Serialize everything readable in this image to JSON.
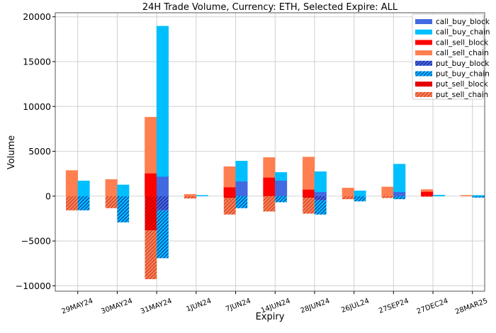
{
  "chart_data": {
    "type": "bar",
    "title": "24H Trade Volume, Currency: ETH, Selected Expire: ALL",
    "xlabel": "Expiry",
    "ylabel": "Volume",
    "ylim": [
      -10600,
      20450
    ],
    "yticks": [
      -10000,
      -5000,
      0,
      5000,
      10000,
      15000,
      20000
    ],
    "ytick_labels": [
      "−10000",
      "−5000",
      "0",
      "5000",
      "10000",
      "15000",
      "20000"
    ],
    "grid": true,
    "legend_position": "top-right",
    "stacked": true,
    "categories": [
      "29MAY24",
      "30MAY24",
      "31MAY24",
      "1JUN24",
      "7JUN24",
      "14JUN24",
      "28JUN24",
      "26JUL24",
      "27SEP24",
      "27DEC24",
      "28MAR25"
    ],
    "series": [
      {
        "name": "call_buy_block",
        "side": "buy",
        "color": "#4169e1",
        "hatch": false,
        "values": [
          0,
          0,
          2180,
          0,
          1650,
          1740,
          470,
          0,
          470,
          0,
          0
        ]
      },
      {
        "name": "call_buy_chain",
        "side": "buy",
        "color": "#00bfff",
        "hatch": false,
        "values": [
          1710,
          1260,
          16780,
          100,
          2270,
          920,
          2270,
          600,
          3110,
          130,
          100
        ]
      },
      {
        "name": "call_sell_block",
        "side": "sell",
        "color": "#ff0000",
        "hatch": false,
        "values": [
          0,
          0,
          2550,
          0,
          1000,
          2080,
          740,
          0,
          0,
          500,
          0
        ]
      },
      {
        "name": "call_sell_chain",
        "side": "sell",
        "color": "#ff7f50",
        "hatch": false,
        "values": [
          2870,
          1870,
          6260,
          210,
          2300,
          2230,
          3630,
          920,
          1030,
          240,
          100
        ]
      },
      {
        "name": "put_buy_block",
        "side": "buy",
        "color": "#4169e1",
        "hatch": true,
        "values": [
          0,
          0,
          -1580,
          0,
          0,
          0,
          -470,
          0,
          0,
          0,
          0
        ]
      },
      {
        "name": "put_buy_chain",
        "side": "buy",
        "color": "#00bfff",
        "hatch": true,
        "values": [
          -1580,
          -2920,
          -5340,
          0,
          -1340,
          -680,
          -1580,
          -580,
          -340,
          0,
          -160
        ]
      },
      {
        "name": "put_sell_block",
        "side": "sell",
        "color": "#ff0000",
        "hatch": true,
        "values": [
          0,
          0,
          -3810,
          0,
          -200,
          0,
          -180,
          0,
          0,
          0,
          0
        ]
      },
      {
        "name": "put_sell_chain",
        "side": "sell",
        "color": "#ff7f50",
        "hatch": true,
        "values": [
          -1580,
          -1340,
          -5450,
          -260,
          -1850,
          -1710,
          -1770,
          -340,
          -210,
          -80,
          0
        ]
      }
    ]
  }
}
